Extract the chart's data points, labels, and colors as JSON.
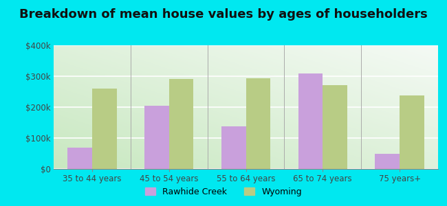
{
  "title": "Breakdown of mean house values by ages of householders",
  "categories": [
    "35 to 44 years",
    "45 to 54 years",
    "55 to 64 years",
    "65 to 74 years",
    "75 years+"
  ],
  "rawhide_creek": [
    68000,
    205000,
    138000,
    310000,
    50000
  ],
  "wyoming": [
    260000,
    292000,
    293000,
    272000,
    238000
  ],
  "rawhide_color": "#c9a0dc",
  "wyoming_color": "#b8cc85",
  "background_outer": "#00e8f0",
  "background_inner_bottom_left": "#c8e8c0",
  "background_inner_top_right": "#f5faf5",
  "ylim": [
    0,
    400000
  ],
  "yticks": [
    0,
    100000,
    200000,
    300000,
    400000
  ],
  "ytick_labels": [
    "$0",
    "$100k",
    "$200k",
    "$300k",
    "$400k"
  ],
  "title_fontsize": 13,
  "legend_rawhide": "Rawhide Creek",
  "legend_wyoming": "Wyoming",
  "bar_width": 0.32
}
